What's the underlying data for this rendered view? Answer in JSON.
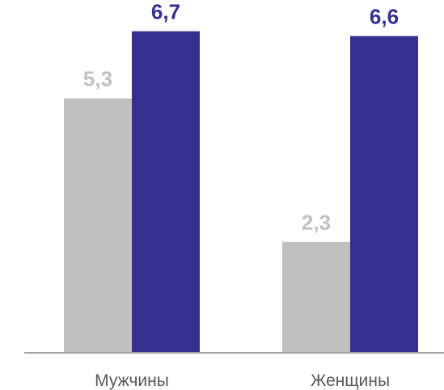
{
  "chart_data": {
    "type": "bar",
    "categories": [
      "Мужчины",
      "Женщины"
    ],
    "series": [
      {
        "values": [
          5.3,
          2.3
        ],
        "labels": [
          "5,3",
          "2,3"
        ],
        "color": "#c0c0c0",
        "label_color": "#c0c0c0"
      },
      {
        "values": [
          6.7,
          6.6
        ],
        "labels": [
          "6,7",
          "6,6"
        ],
        "color": "#33318f",
        "label_color": "#33318f"
      }
    ],
    "title": "",
    "xlabel": "",
    "ylabel": "",
    "ylim": [
      0,
      7.1
    ],
    "grid": false,
    "legend": "none",
    "axis_color": "#a6a6a6"
  }
}
